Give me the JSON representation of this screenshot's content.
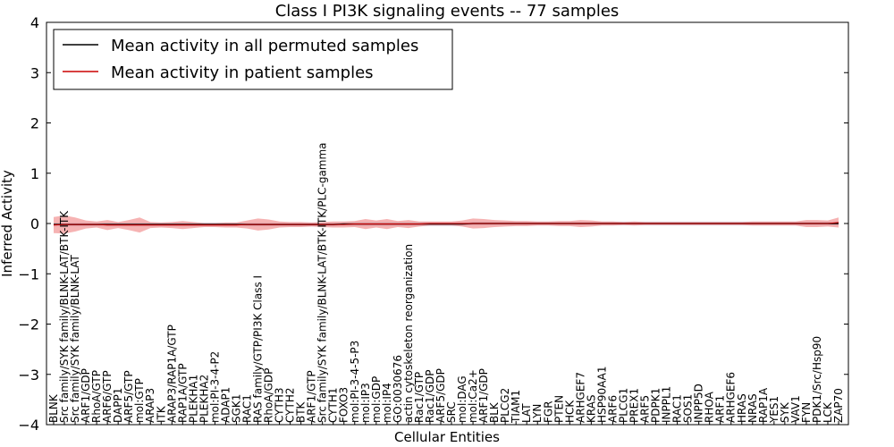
{
  "chart_data": {
    "type": "line",
    "title": "Class I PI3K signaling events -- 77 samples",
    "xlabel": "Cellular Entities",
    "ylabel": "Inferred Activity",
    "ylim": [
      -4,
      4
    ],
    "yticks": [
      -4,
      -3,
      -2,
      -1,
      0,
      1,
      2,
      3,
      4
    ],
    "legend_position": "top-left",
    "colors": {
      "permuted": "#000000",
      "patient": "#cc0000",
      "patient_band": "#f08080",
      "permuted_band": "#b0b8d8"
    },
    "categories": [
      "BLNK",
      "Src family/SYK family/BLNK-LAT/BTK-ITK",
      "Src family/SYK family/BLNK-LAT",
      "ARF1/GDP",
      "RhoA/GTP",
      "ARF6/GTP",
      "DAPP1",
      "ARF5/GTP",
      "mol:GTP",
      "ARAP3",
      "ITK",
      "ARAP3/RAP1A/GTP",
      "RAP1A/GTP",
      "PLEKHA1",
      "PLEKHA2",
      "mol:PI-3-4-P2",
      "ADAP1",
      "SGK1",
      "RAC1",
      "RAS family/GTP/PI3K Class I",
      "RhoA/GDP",
      "CYTH3",
      "CYTH2",
      "BTK",
      "ARF1/GTP",
      "Src family/SYK family/BLNK-LAT/BTK-ITK/PLC-gamma",
      "CYTH1",
      "FOXO3",
      "mol:PI-3-4-5-P3",
      "mol:IP3",
      "mol:GDP",
      "mol:IP4",
      "GO:0030676",
      "actin cytoskeleton reorganization",
      "Rac1/GTP",
      "Rac1/GDP",
      "ARF5/GDP",
      "SRC",
      "mol:DAG",
      "mol:Ca2+",
      "ARF1/GDP",
      "BLK",
      "PLCG2",
      "TIAM1",
      "LAT",
      "LYN",
      "FGR",
      "PTEN",
      "HCK",
      "ARHGEF7",
      "KRAS",
      "HSP90AA1",
      "ARF6",
      "PLCG1",
      "PREX1",
      "ARF5",
      "PDPK1",
      "INPPL1",
      "RAC1",
      "SOS1",
      "INPP5D",
      "RHOA",
      "ARF1",
      "ARHGEF6",
      "HRAS",
      "NRAS",
      "RAP1A",
      "YES1",
      "SYK",
      "VAV1",
      "FYN",
      "PDK1/Src/Hsp90",
      "LCK",
      "ZAP70"
    ],
    "series": [
      {
        "name": "Mean activity in all permuted samples",
        "color": "#000000",
        "values": [
          -0.02,
          -0.02,
          -0.02,
          -0.02,
          -0.02,
          -0.02,
          -0.02,
          -0.02,
          -0.02,
          -0.02,
          -0.02,
          -0.02,
          -0.02,
          -0.02,
          -0.02,
          -0.02,
          -0.02,
          -0.02,
          -0.02,
          -0.02,
          -0.02,
          -0.02,
          -0.02,
          -0.02,
          -0.02,
          -0.02,
          -0.02,
          -0.01,
          -0.01,
          -0.01,
          -0.01,
          -0.01,
          -0.01,
          -0.01,
          -0.01,
          -0.01,
          -0.01,
          -0.01,
          -0.01,
          0.0,
          0.0,
          0.0,
          0.0,
          0.0,
          0.0,
          0.0,
          0.0,
          0.0,
          0.0,
          0.0,
          0.0,
          0.0,
          0.0,
          0.0,
          0.0,
          0.0,
          0.0,
          0.0,
          0.0,
          0.0,
          0.0,
          0.0,
          0.0,
          0.0,
          0.0,
          0.0,
          0.0,
          0.0,
          0.0,
          0.0,
          0.0,
          0.0,
          0.0,
          0.0
        ]
      },
      {
        "name": "Mean activity in patient samples",
        "color": "#cc0000",
        "values": [
          -0.03,
          -0.02,
          -0.02,
          -0.02,
          -0.02,
          -0.03,
          -0.03,
          -0.03,
          -0.03,
          -0.03,
          -0.03,
          -0.03,
          -0.03,
          -0.03,
          -0.03,
          -0.03,
          -0.03,
          -0.03,
          -0.02,
          -0.02,
          -0.02,
          -0.02,
          -0.02,
          -0.02,
          -0.02,
          -0.02,
          -0.02,
          -0.02,
          -0.01,
          -0.01,
          -0.01,
          -0.01,
          -0.01,
          -0.01,
          -0.01,
          0.0,
          0.0,
          0.0,
          0.0,
          0.0,
          0.0,
          0.0,
          0.0,
          0.0,
          0.0,
          0.0,
          0.0,
          0.0,
          0.0,
          0.0,
          0.0,
          0.0,
          0.0,
          0.0,
          0.0,
          0.0,
          0.0,
          0.0,
          0.0,
          0.0,
          0.0,
          0.0,
          0.0,
          0.0,
          0.0,
          0.0,
          0.0,
          0.0,
          0.0,
          0.0,
          0.0,
          0.0,
          0.0,
          0.02
        ]
      }
    ],
    "patient_band_halfwidth": [
      0.16,
      0.18,
      0.14,
      0.08,
      0.06,
      0.1,
      0.06,
      0.1,
      0.15,
      0.06,
      0.05,
      0.06,
      0.08,
      0.06,
      0.04,
      0.04,
      0.05,
      0.05,
      0.08,
      0.12,
      0.1,
      0.06,
      0.05,
      0.05,
      0.04,
      0.05,
      0.06,
      0.06,
      0.06,
      0.1,
      0.07,
      0.1,
      0.06,
      0.08,
      0.05,
      0.04,
      0.04,
      0.04,
      0.06,
      0.1,
      0.09,
      0.07,
      0.06,
      0.05,
      0.05,
      0.04,
      0.04,
      0.05,
      0.05,
      0.07,
      0.06,
      0.04,
      0.04,
      0.03,
      0.04,
      0.03,
      0.03,
      0.03,
      0.03,
      0.03,
      0.03,
      0.03,
      0.03,
      0.03,
      0.03,
      0.04,
      0.04,
      0.04,
      0.04,
      0.04,
      0.07,
      0.07,
      0.06,
      0.1
    ],
    "permuted_band_halfwidth": 0.04
  }
}
